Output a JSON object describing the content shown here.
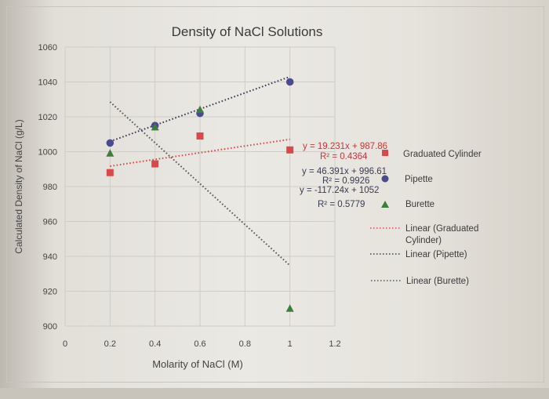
{
  "chart_data": {
    "type": "scatter",
    "title": "Density of NaCl Solutions",
    "xlabel": "Molarity of NaCl (M)",
    "ylabel": "Calculated Density of NaCl (g/L)",
    "xlim": [
      0,
      1.2
    ],
    "ylim": [
      900,
      1060
    ],
    "xticks": [
      "0",
      "0.2",
      "0.4",
      "0.6",
      "0.8",
      "1",
      "1.2"
    ],
    "yticks": [
      "900",
      "920",
      "940",
      "960",
      "980",
      "1000",
      "1020",
      "1040",
      "1060"
    ],
    "grid": true,
    "legend_position": "right",
    "x": [
      0.2,
      0.4,
      0.6,
      1.0
    ],
    "series": [
      {
        "name": "Graduated Cylinder",
        "marker": "square",
        "color": "#d9484a",
        "values": [
          988,
          993,
          1009,
          1001
        ],
        "trendline": {
          "label": "Linear (Graduated Cylinder)",
          "equation": "y = 19.231x + 987.86",
          "r2": "R² = 0.4364",
          "slope": 19.231,
          "intercept": 987.86
        }
      },
      {
        "name": "Pipette",
        "marker": "circle",
        "color": "#4a4a8c",
        "values": [
          1005,
          1015,
          1022,
          1040
        ],
        "trendline": {
          "label": "Linear (Pipette)",
          "equation": "y = 46.391x + 996.61",
          "r2": "R² = 0.9926",
          "slope": 46.391,
          "intercept": 996.61
        }
      },
      {
        "name": "Burette",
        "marker": "triangle",
        "color": "#3e7d3e",
        "values": [
          999,
          1014,
          1024,
          910
        ],
        "trendline": {
          "label": "Linear (Burette)",
          "equation": "y = -117.24x + 1052",
          "r2": "R² = 0.5779",
          "slope": -117.24,
          "intercept": 1052
        }
      }
    ]
  },
  "labels": {
    "title": "Density of NaCl Solutions",
    "xlabel": "Molarity of NaCl (M)",
    "ylabel": "Calculated Density of NaCl (g/L)",
    "eq_grad": "y = 19.231x + 987.86",
    "r2_grad": "R² = 0.4364",
    "eq_pip": "y = 46.391x + 996.61",
    "r2_pip": "R² = 0.9926",
    "eq_bur": "y = -117.24x + 1052",
    "r2_bur": "R² = 0.5779",
    "legend_grad": "Graduated Cylinder",
    "legend_pip": "Pipette",
    "legend_bur": "Burette",
    "legend_lin_grad_1": "Linear (Graduated",
    "legend_lin_grad_2": "Cylinder)",
    "legend_lin_pip": "Linear (Pipette)",
    "legend_lin_bur": "Linear (Burette)"
  },
  "colors": {
    "graduated": "#d9484a",
    "pipette": "#4a4a8c",
    "burette": "#3e7d3e",
    "trend_dark": "#555a5a"
  }
}
